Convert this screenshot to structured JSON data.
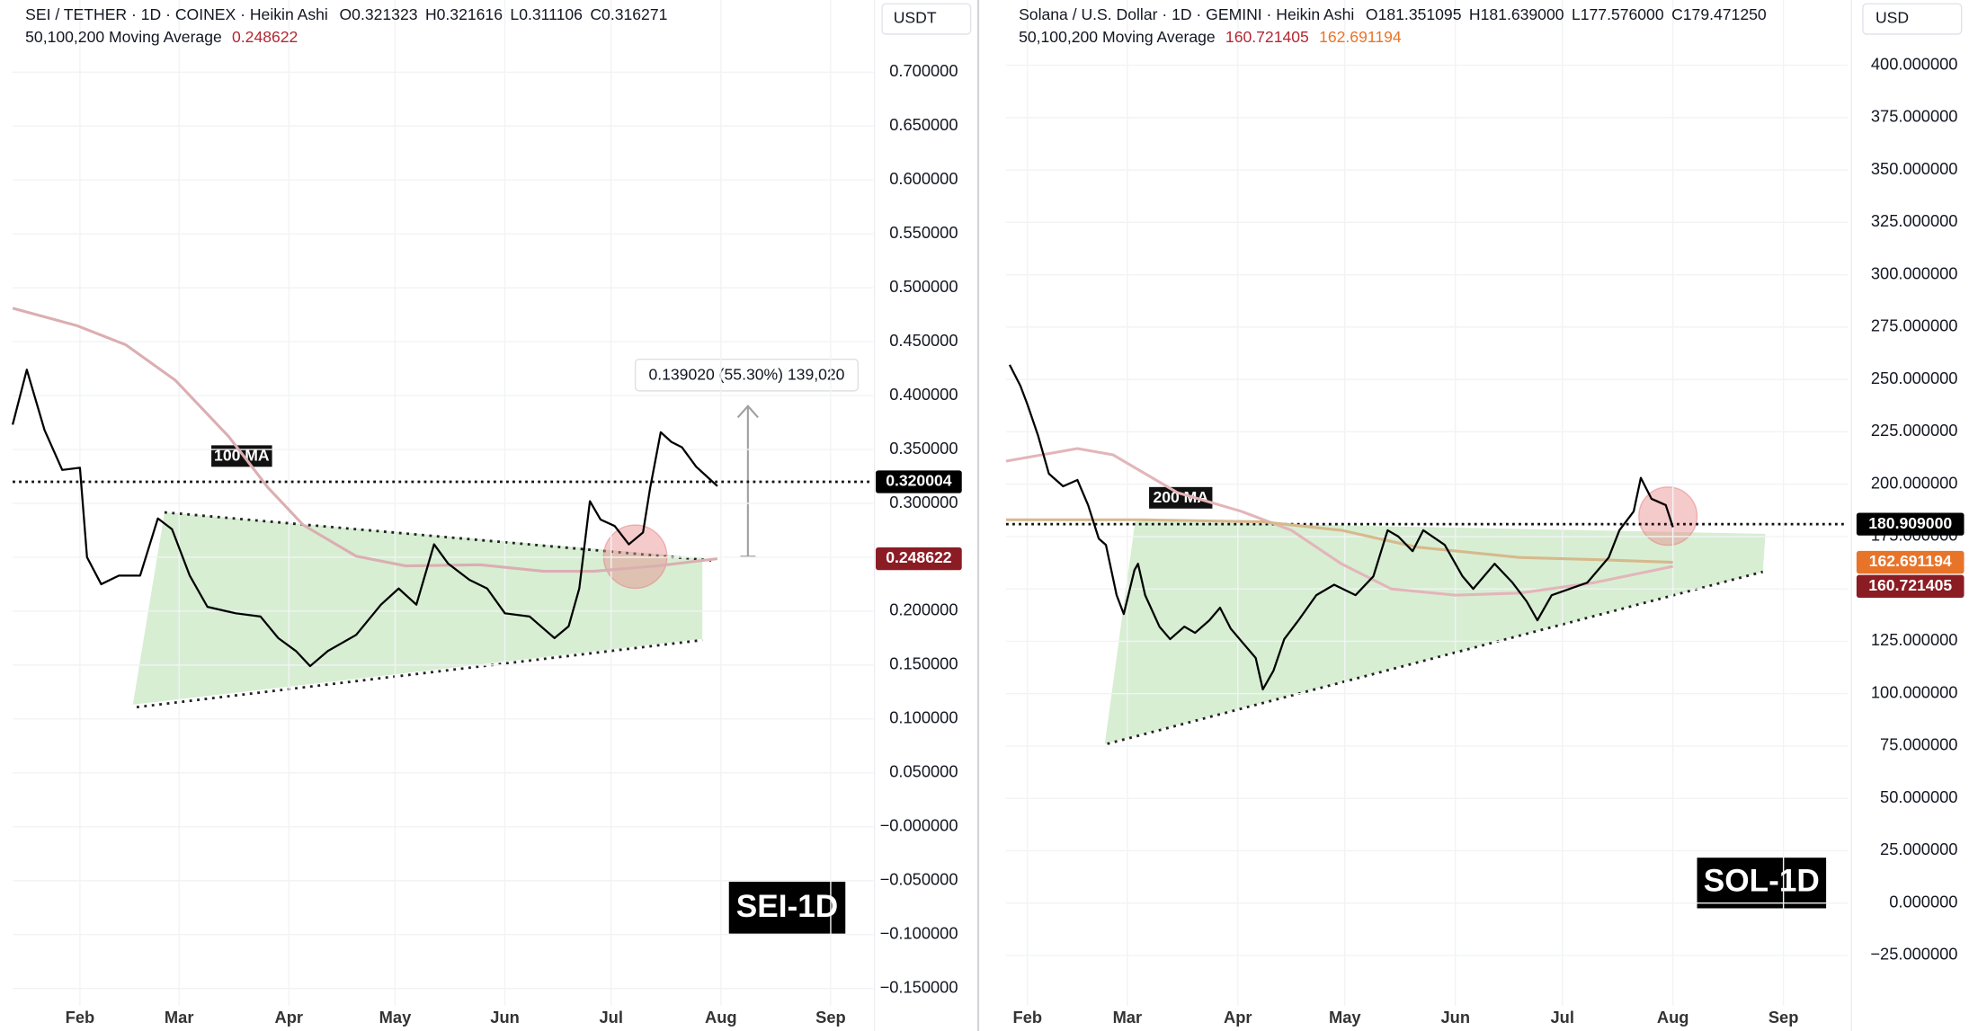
{
  "chart_data": [
    {
      "type": "line",
      "title": "SEI / TETHER · 1D · COINEX · Heikin Ashi",
      "ohlc": [
        "O0.321323",
        "H0.321616",
        "L0.311106",
        "C0.316271"
      ],
      "ma_label": "50,100,200 Moving Average",
      "ma_legend": [
        {
          "value": 0.248622,
          "color": "#b22833"
        }
      ],
      "currency": "USDT",
      "watermark": "SEI-1D",
      "ma_tag": "100 MA",
      "measure_label": "0.139020 (55.30%) 139,020",
      "grid": true,
      "xlim": [
        12,
        255
      ],
      "ylim": [
        -0.166,
        0.72
      ],
      "xticks": [
        {
          "value": 31,
          "label": "Feb"
        },
        {
          "value": 59,
          "label": "Mar"
        },
        {
          "value": 90,
          "label": "Apr"
        },
        {
          "value": 120,
          "label": "May"
        },
        {
          "value": 151,
          "label": "Jun"
        },
        {
          "value": 181,
          "label": "Jul"
        },
        {
          "value": 212,
          "label": "Aug"
        },
        {
          "value": 243,
          "label": "Sep"
        }
      ],
      "yticks": [
        {
          "value": 0.7,
          "label": "0.700000"
        },
        {
          "value": 0.65,
          "label": "0.650000"
        },
        {
          "value": 0.6,
          "label": "0.600000"
        },
        {
          "value": 0.55,
          "label": "0.550000"
        },
        {
          "value": 0.5,
          "label": "0.500000"
        },
        {
          "value": 0.45,
          "label": "0.450000"
        },
        {
          "value": 0.4,
          "label": "0.400000"
        },
        {
          "value": 0.35,
          "label": "0.350000"
        },
        {
          "value": 0.3,
          "label": "0.300000"
        },
        {
          "value": 0.25,
          "label": "0.250000"
        },
        {
          "value": 0.2,
          "label": "0.200000"
        },
        {
          "value": 0.15,
          "label": "0.150000"
        },
        {
          "value": 0.1,
          "label": "0.100000"
        },
        {
          "value": 0.05,
          "label": "0.050000"
        },
        {
          "value": 0,
          "label": "−0.000000"
        },
        {
          "value": -0.05,
          "label": "−0.050000"
        },
        {
          "value": -0.1,
          "label": "−0.100000"
        },
        {
          "value": -0.15,
          "label": "−0.150000"
        }
      ],
      "price_tags": [
        {
          "value": 0.320004,
          "color": "#000000"
        },
        {
          "value": 0.248622,
          "color": "#8b1c24"
        }
      ],
      "series": [
        {
          "color": "#000000",
          "x": [
            12,
            16,
            21,
            26,
            31,
            33,
            37,
            42,
            48,
            53,
            57,
            62,
            67,
            75,
            82,
            87,
            92,
            96,
            101,
            109,
            116,
            121,
            126,
            131,
            135,
            141,
            146,
            151,
            158,
            165,
            169,
            172,
            175,
            178,
            182,
            186,
            190,
            192,
            195,
            198,
            201,
            205,
            208,
            211
          ],
          "values": [
            0.373,
            0.424,
            0.368,
            0.331,
            0.333,
            0.25,
            0.225,
            0.233,
            0.233,
            0.286,
            0.276,
            0.233,
            0.204,
            0.198,
            0.195,
            0.175,
            0.163,
            0.149,
            0.163,
            0.178,
            0.206,
            0.221,
            0.206,
            0.262,
            0.244,
            0.229,
            0.221,
            0.198,
            0.195,
            0.175,
            0.186,
            0.221,
            0.302,
            0.285,
            0.279,
            0.262,
            0.273,
            0.314,
            0.366,
            0.357,
            0.352,
            0.334,
            0.325,
            0.316
          ]
        },
        {
          "color": "#dbaeb2",
          "x": [
            12,
            30,
            44,
            58,
            73,
            84,
            94,
            109,
            123,
            144,
            162,
            176,
            194,
            211
          ],
          "values": [
            0.481,
            0.465,
            0.447,
            0.414,
            0.362,
            0.315,
            0.28,
            0.251,
            0.242,
            0.243,
            0.237,
            0.237,
            0.242,
            0.248622
          ]
        }
      ]
    },
    {
      "type": "line",
      "title": "Solana / U.S. Dollar · 1D · GEMINI · Heikin Ashi",
      "ohlc": [
        "O181.351095",
        "H181.639000",
        "L177.576000",
        "C179.471250"
      ],
      "ma_label": "50,100,200 Moving Average",
      "ma_legend": [
        {
          "value": 160.721405,
          "color": "#b22833"
        },
        {
          "value": 162.691194,
          "color": "#e8742a"
        }
      ],
      "currency": "USD",
      "watermark": "SOL-1D",
      "ma_tag": "200 MA",
      "grid": true,
      "xlim": [
        25,
        261
      ],
      "ylim": [
        -49,
        407
      ],
      "xticks": [
        {
          "value": 31,
          "label": "Feb"
        },
        {
          "value": 59,
          "label": "Mar"
        },
        {
          "value": 90,
          "label": "Apr"
        },
        {
          "value": 120,
          "label": "May"
        },
        {
          "value": 151,
          "label": "Jun"
        },
        {
          "value": 181,
          "label": "Jul"
        },
        {
          "value": 212,
          "label": "Aug"
        },
        {
          "value": 243,
          "label": "Sep"
        }
      ],
      "yticks": [
        {
          "value": 400,
          "label": "400.000000"
        },
        {
          "value": 375,
          "label": "375.000000"
        },
        {
          "value": 350,
          "label": "350.000000"
        },
        {
          "value": 325,
          "label": "325.000000"
        },
        {
          "value": 300,
          "label": "300.000000"
        },
        {
          "value": 275,
          "label": "275.000000"
        },
        {
          "value": 250,
          "label": "250.000000"
        },
        {
          "value": 225,
          "label": "225.000000"
        },
        {
          "value": 200,
          "label": "200.000000"
        },
        {
          "value": 175,
          "label": "175.000000"
        },
        {
          "value": 150,
          "label": "150.000000"
        },
        {
          "value": 125,
          "label": "125.000000"
        },
        {
          "value": 100,
          "label": "100.000000"
        },
        {
          "value": 75,
          "label": "75.000000"
        },
        {
          "value": 50,
          "label": "50.000000"
        },
        {
          "value": 25,
          "label": "25.000000"
        },
        {
          "value": 0,
          "label": "0.000000"
        },
        {
          "value": -25,
          "label": "−25.000000"
        }
      ],
      "price_tags": [
        {
          "value": 180.909,
          "label": "180.909000",
          "color": "#000000"
        },
        {
          "value": 162.691194,
          "color": "#e8742a"
        },
        {
          "value": 160.721405,
          "color": "#8b1c24"
        }
      ],
      "series": [
        {
          "color": "#000000",
          "x": [
            26,
            29,
            31,
            34,
            37,
            41,
            45,
            48,
            51,
            53,
            56,
            58,
            61,
            62,
            64,
            68,
            71,
            75,
            78,
            82,
            85,
            88,
            92,
            95,
            97,
            100,
            103,
            107,
            112,
            117,
            123,
            128,
            132,
            135,
            139,
            142,
            148,
            153,
            156,
            162,
            167,
            171,
            174,
            178,
            183,
            188,
            194,
            197,
            201,
            203,
            206,
            210,
            212
          ],
          "values": [
            257,
            247,
            238,
            223,
            205,
            199,
            202,
            190,
            174,
            171,
            147,
            138,
            159,
            162,
            147,
            132,
            126,
            132,
            129,
            135,
            141,
            131,
            123,
            117,
            102,
            111,
            126,
            135,
            147,
            152,
            147,
            156,
            178,
            175,
            168,
            178,
            171,
            156,
            150,
            162,
            153,
            144,
            135,
            147,
            150,
            153,
            165,
            178,
            187,
            203,
            193,
            190,
            179.47
          ]
        },
        {
          "color": "#d6b98c",
          "x": [
            25,
            62,
            97,
            119,
            140,
            169,
            190,
            212
          ],
          "values": [
            183,
            183,
            182,
            178,
            170,
            165,
            164,
            162.691194
          ]
        },
        {
          "color": "#e3b5b9",
          "x": [
            25,
            45,
            55,
            73,
            91,
            105,
            119,
            133,
            151,
            169,
            190,
            212
          ],
          "values": [
            211,
            217,
            214,
            196,
            187,
            178,
            162,
            150,
            147,
            148,
            153,
            160.721405
          ]
        }
      ]
    }
  ]
}
